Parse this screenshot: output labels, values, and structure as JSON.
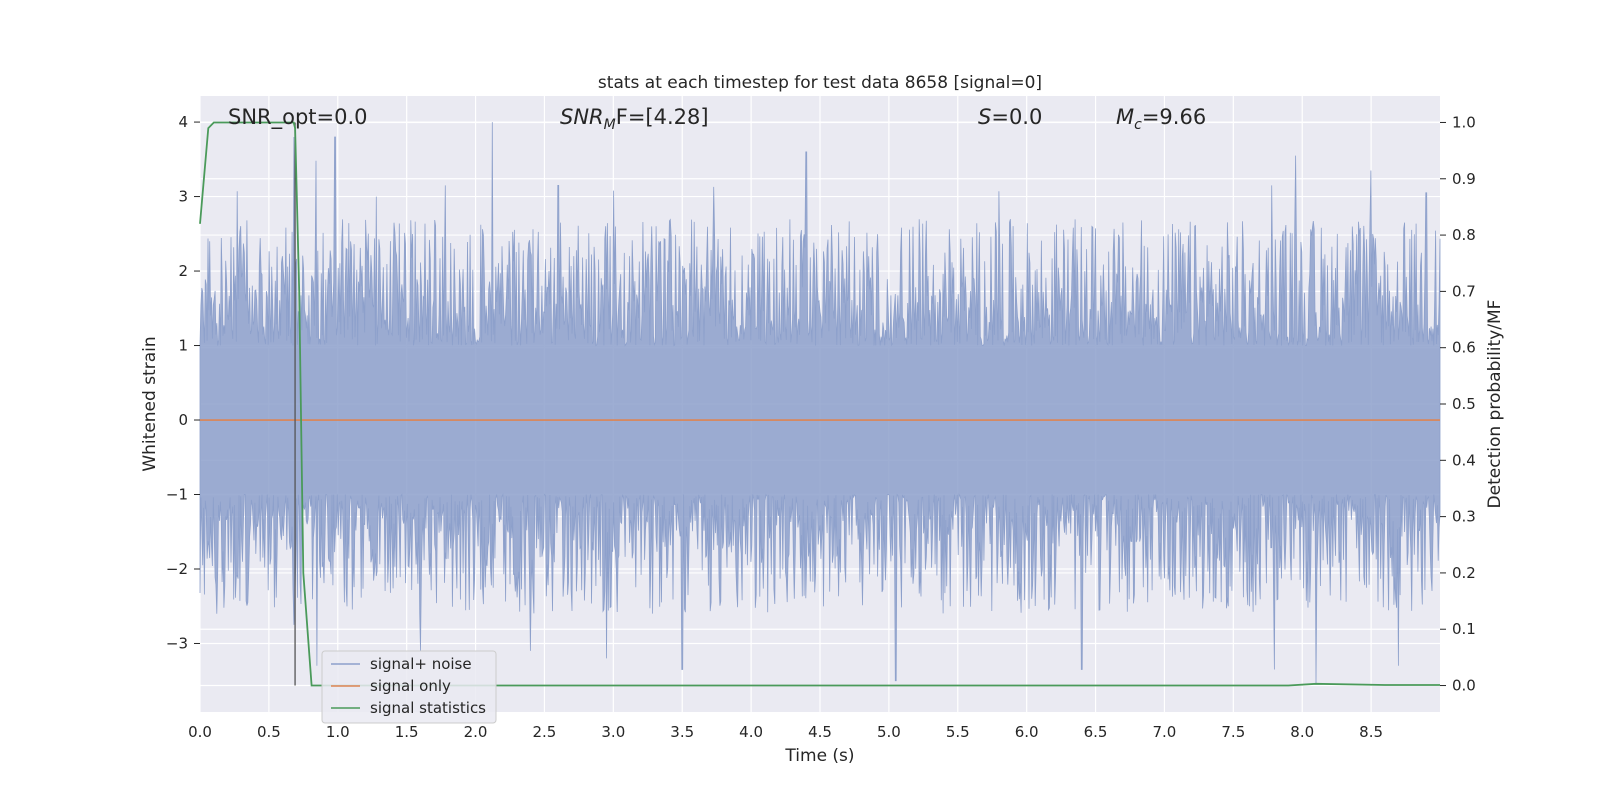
{
  "chart_data": {
    "type": "line",
    "title": "stats at each timestep for test data 8658 [signal=0]",
    "xlabel": "Time (s)",
    "ylabel": "Whitened strain",
    "ylabel_right": "Detection probability/MF",
    "xlim": [
      0.0,
      9.0
    ],
    "ylim": [
      -3.92,
      4.35
    ],
    "ylim_right": [
      -0.047,
      1.047
    ],
    "x_ticks": [
      "0.0",
      "0.5",
      "1.0",
      "1.5",
      "2.0",
      "2.5",
      "3.0",
      "3.5",
      "4.0",
      "4.5",
      "5.0",
      "5.5",
      "6.0",
      "6.5",
      "7.0",
      "7.5",
      "8.0",
      "8.5"
    ],
    "y_ticks": [
      "4",
      "3",
      "2",
      "1",
      "0",
      "−1",
      "−2",
      "−3"
    ],
    "y_right_ticks": [
      "1.0",
      "0.9",
      "0.8",
      "0.7",
      "0.6",
      "0.5",
      "0.4",
      "0.3",
      "0.2",
      "0.1",
      "0.0"
    ],
    "grid": true,
    "legend_position": "lower-left",
    "annotations": {
      "snr_opt": "SNR_opt=0.0",
      "snr_mf_main": "SNR",
      "snr_mf_sub": "M",
      "snr_mf_tail": "F=[4.28]",
      "s_italic": "S",
      "s_value": "=0.0",
      "mc_main": "M",
      "mc_sub": "c",
      "mc_value": "=9.66"
    },
    "marker_line_x": 0.69,
    "series": [
      {
        "name": "signal+ noise",
        "color": "#8da0cb",
        "description_range": [
          -3.6,
          4.0
        ],
        "peaks": [
          {
            "x": 0.07,
            "y": 2.4
          },
          {
            "x": 0.27,
            "y": 3.07
          },
          {
            "x": 0.68,
            "y": 3.8
          },
          {
            "x": 0.84,
            "y": 3.48
          },
          {
            "x": 0.98,
            "y": 3.8
          },
          {
            "x": 1.28,
            "y": 3.0
          },
          {
            "x": 1.78,
            "y": 3.15
          },
          {
            "x": 2.12,
            "y": 4.0
          },
          {
            "x": 2.6,
            "y": 3.15
          },
          {
            "x": 3.0,
            "y": 3.08
          },
          {
            "x": 3.73,
            "y": 3.13
          },
          {
            "x": 4.4,
            "y": 3.6
          },
          {
            "x": 5.8,
            "y": 3.07
          },
          {
            "x": 7.78,
            "y": 3.15
          },
          {
            "x": 7.95,
            "y": 3.55
          },
          {
            "x": 8.5,
            "y": 3.35
          },
          {
            "x": 8.9,
            "y": 3.05
          }
        ],
        "troughs": [
          {
            "x": 0.12,
            "y": -2.6
          },
          {
            "x": 0.68,
            "y": -2.75
          },
          {
            "x": 0.85,
            "y": -3.3
          },
          {
            "x": 1.6,
            "y": -3.1
          },
          {
            "x": 2.4,
            "y": -3.1
          },
          {
            "x": 2.95,
            "y": -3.2
          },
          {
            "x": 3.5,
            "y": -3.35
          },
          {
            "x": 5.05,
            "y": -3.5
          },
          {
            "x": 6.4,
            "y": -3.35
          },
          {
            "x": 7.8,
            "y": -3.35
          },
          {
            "x": 8.1,
            "y": -3.55
          },
          {
            "x": 8.7,
            "y": -3.3
          }
        ]
      },
      {
        "name": "signal only",
        "color": "#dd8452",
        "x": [
          0.0,
          9.0
        ],
        "y": [
          0.0,
          0.0
        ]
      },
      {
        "name": "signal statistics",
        "color": "#4a9a5a",
        "axis": "right",
        "x": [
          0.0,
          0.06,
          0.1,
          0.15,
          0.6,
          0.68,
          0.69,
          0.72,
          0.75,
          0.81,
          2.0,
          6.0,
          7.9,
          8.1,
          8.6,
          9.0
        ],
        "y": [
          0.82,
          0.99,
          1.0,
          1.0,
          1.0,
          1.0,
          0.99,
          0.7,
          0.2,
          0.0,
          0.0,
          0.0,
          0.0,
          0.003,
          0.001,
          0.001
        ]
      }
    ]
  }
}
